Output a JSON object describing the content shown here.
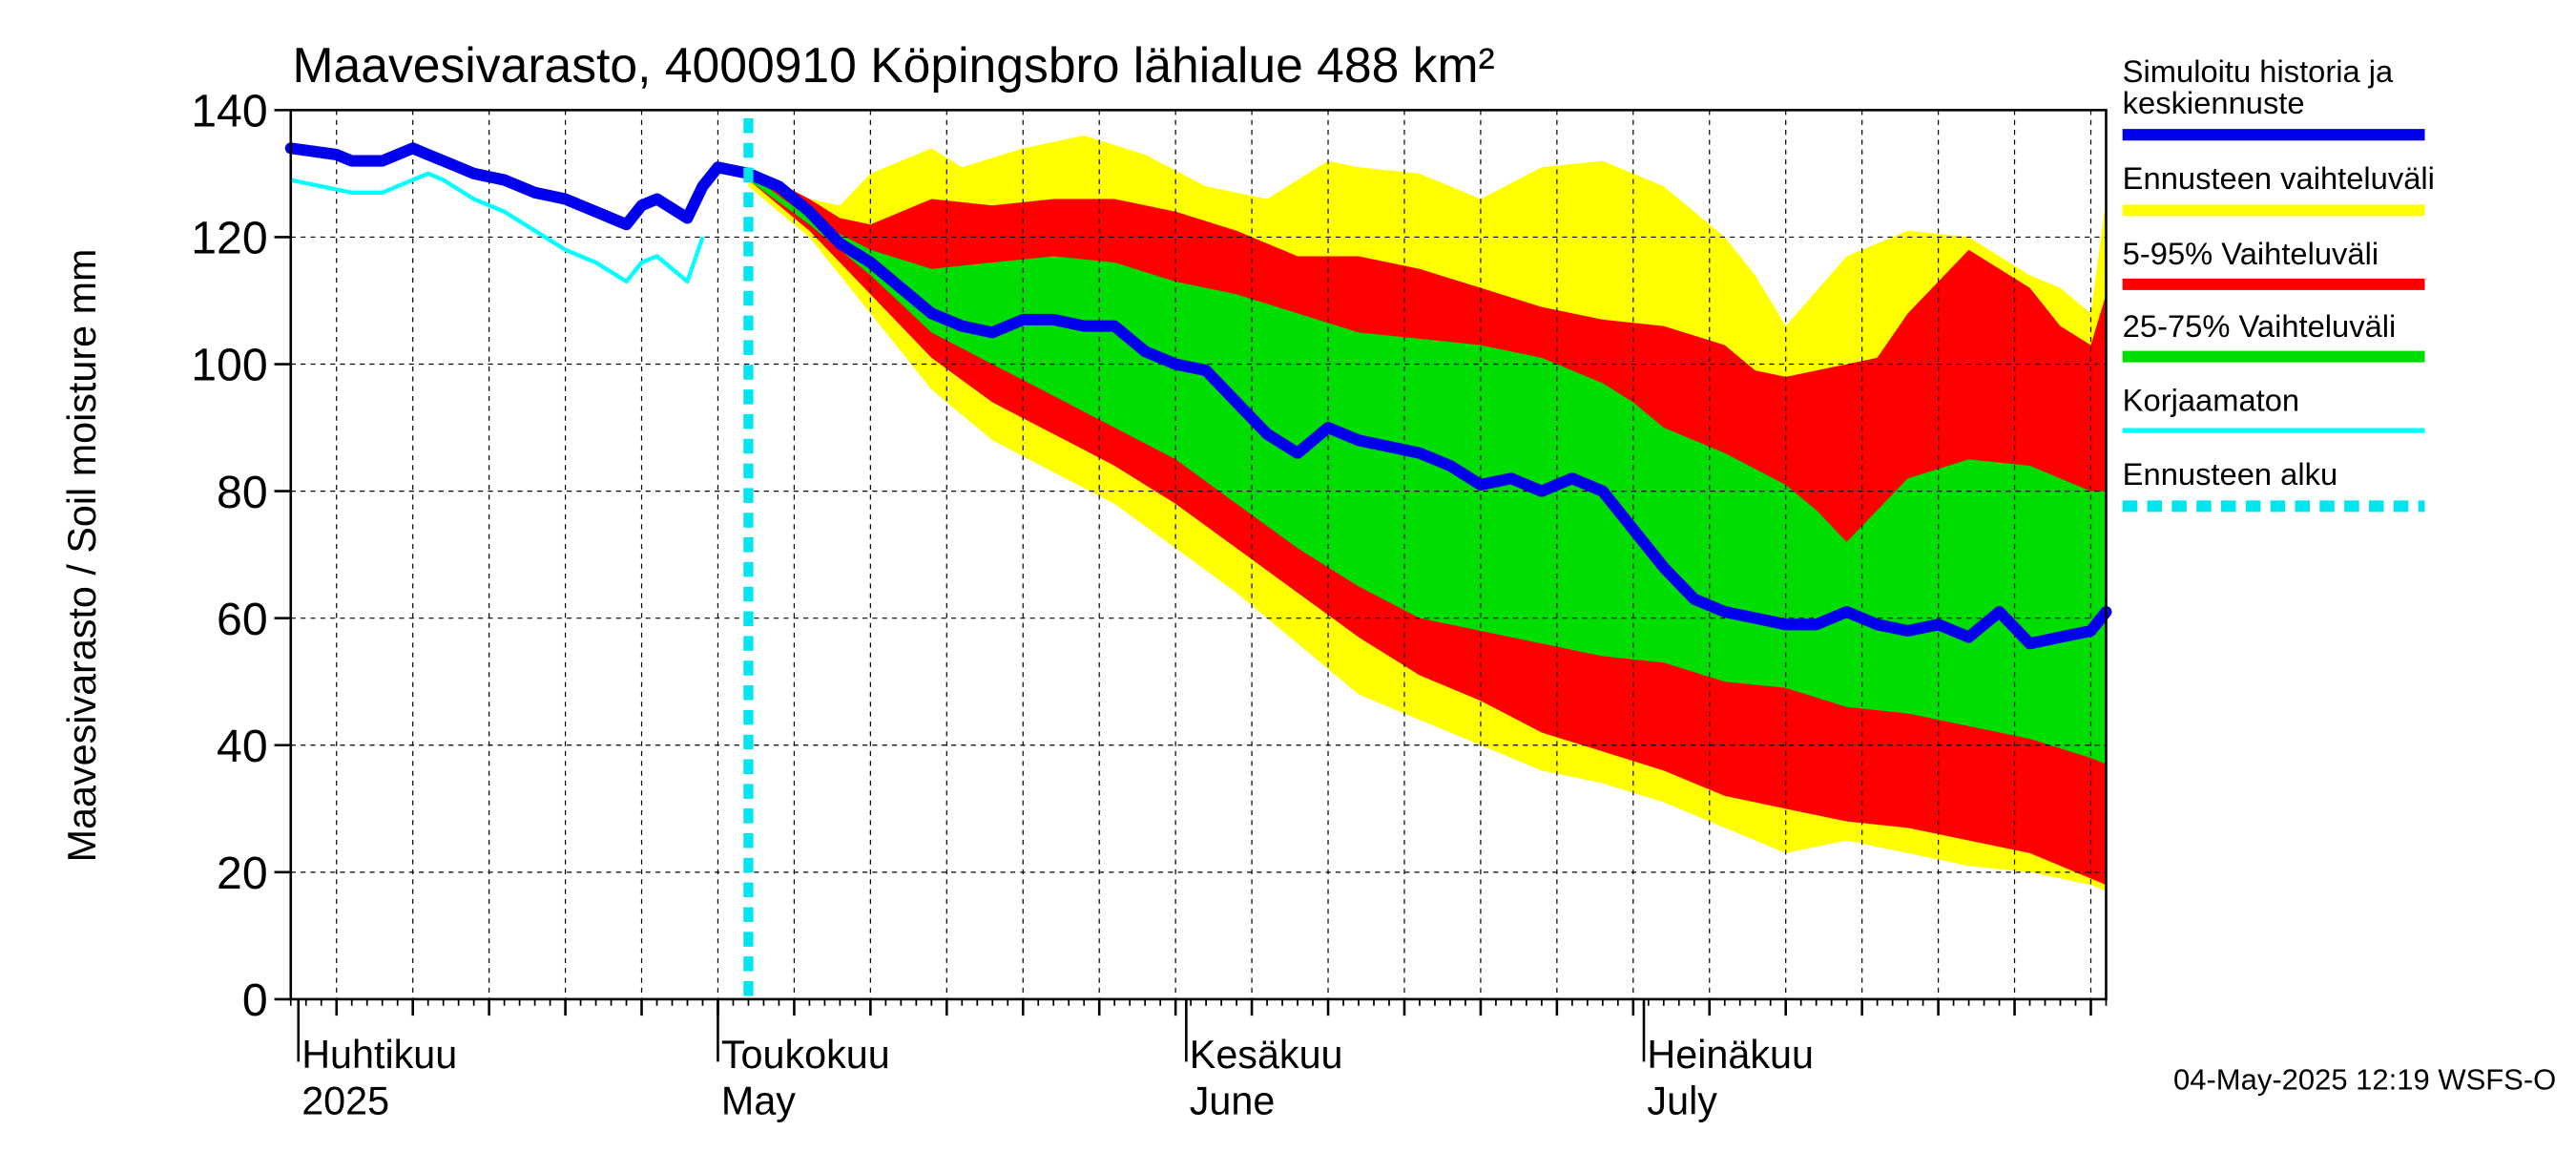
{
  "chart_data": {
    "type": "area",
    "title": "Maavesivarasto, 4000910 Köpingsbro lähialue 488 km²",
    "ylabel": "Maavesivarasto / Soil moisture   mm",
    "ylim": [
      0,
      140
    ],
    "yticks": [
      "0",
      "20",
      "40",
      "60",
      "80",
      "100",
      "120",
      "140"
    ],
    "x_range_days": [
      0,
      119
    ],
    "x_start_date": "2025-03-30",
    "forecast_start_day": 30,
    "month_labels": [
      {
        "day": 0.5,
        "line1": "Huhtikuu",
        "line2": "2025"
      },
      {
        "day": 28,
        "line1": "Toukokuu",
        "line2": "May"
      },
      {
        "day": 58.7,
        "line1": "Kesäkuu",
        "line2": "June"
      },
      {
        "day": 88.7,
        "line1": "Heinäkuu",
        "line2": "July"
      }
    ],
    "timestamp": "04-May-2025 12:19 WSFS-O",
    "legend": [
      {
        "label": "Simuloitu historia ja",
        "label2": "keskiennuste",
        "color": "#0000ee",
        "style": "thick"
      },
      {
        "label": "Ennusteen vaihteluväli",
        "color": "#ffff00",
        "style": "thick"
      },
      {
        "label": "5-95% Vaihteluväli",
        "color": "#ff0000",
        "style": "thick"
      },
      {
        "label": "25-75% Vaihteluväli",
        "color": "#00dd00",
        "style": "thick"
      },
      {
        "label": "Korjaamaton",
        "color": "#00ffff",
        "style": "thin"
      },
      {
        "label": "Ennusteen alku",
        "color": "#00e5ee",
        "style": "dashed"
      }
    ],
    "series": [
      {
        "name": "Simuloitu historia (history)",
        "x": [
          0,
          3,
          4,
          6,
          8,
          9,
          10,
          12,
          14,
          16,
          18,
          20,
          22,
          23,
          24,
          26,
          27,
          28,
          30
        ],
        "values": [
          134,
          133,
          132,
          132,
          134,
          133,
          132,
          130,
          129,
          127,
          126,
          124,
          122,
          125,
          126,
          123,
          128,
          131,
          130
        ]
      },
      {
        "name": "Korjaamaton",
        "x": [
          0,
          2,
          4,
          6,
          8,
          9,
          10,
          12,
          14,
          16,
          18,
          20,
          22,
          23,
          24,
          26,
          27
        ],
        "values": [
          129,
          128,
          127,
          127,
          129,
          130,
          129,
          126,
          124,
          121,
          118,
          116,
          113,
          116,
          117,
          113,
          120
        ]
      },
      {
        "name": "Keskiennuste",
        "x": [
          30,
          32,
          34,
          36,
          38,
          40,
          42,
          44,
          46,
          48,
          50,
          52,
          54,
          56,
          58,
          60,
          62,
          64,
          66,
          68,
          70,
          72,
          74,
          76,
          78,
          80,
          82,
          84,
          86,
          88,
          90,
          92,
          94,
          96,
          98,
          100,
          102,
          104,
          106,
          108,
          110,
          112,
          114,
          116,
          118,
          119
        ],
        "values": [
          130,
          128,
          124,
          119,
          116,
          112,
          108,
          106,
          105,
          107,
          107,
          106,
          106,
          102,
          100,
          99,
          94,
          89,
          86,
          90,
          88,
          87,
          86,
          84,
          81,
          82,
          80,
          82,
          80,
          74,
          68,
          63,
          61,
          60,
          59,
          59,
          61,
          59,
          58,
          59,
          57,
          61,
          56,
          57,
          58,
          61
        ]
      },
      {
        "name": "Ennusteen vaihteluväli (upper)",
        "x": [
          30,
          34,
          36,
          38,
          42,
          44,
          48,
          52,
          56,
          60,
          64,
          68,
          70,
          74,
          78,
          82,
          86,
          90,
          94,
          96,
          98,
          102,
          106,
          110,
          114,
          116,
          118,
          119
        ],
        "values": [
          131,
          126,
          125,
          130,
          134,
          131,
          134,
          136,
          133,
          128,
          126,
          132,
          131,
          130,
          126,
          131,
          132,
          128,
          120,
          114,
          106,
          117,
          121,
          120,
          114,
          112,
          108,
          126
        ]
      },
      {
        "name": "Ennusteen vaihteluväli (lower)",
        "x": [
          30,
          34,
          38,
          42,
          46,
          50,
          54,
          58,
          62,
          66,
          70,
          74,
          78,
          82,
          86,
          90,
          94,
          98,
          102,
          106,
          110,
          114,
          118,
          119
        ],
        "values": [
          128,
          120,
          108,
          96,
          88,
          83,
          78,
          71,
          64,
          56,
          48,
          44,
          40,
          36,
          34,
          31,
          27,
          23,
          25,
          23,
          21,
          20,
          18,
          17
        ]
      },
      {
        "name": "5-95% Vaihteluväli (upper)",
        "x": [
          30,
          34,
          36,
          38,
          42,
          46,
          50,
          54,
          58,
          62,
          66,
          70,
          74,
          78,
          82,
          86,
          90,
          94,
          96,
          98,
          102,
          104,
          106,
          110,
          114,
          116,
          118,
          119
        ],
        "values": [
          131,
          126,
          123,
          122,
          126,
          125,
          126,
          126,
          124,
          121,
          117,
          117,
          115,
          112,
          109,
          107,
          106,
          103,
          99,
          98,
          100,
          101,
          108,
          118,
          112,
          106,
          103,
          111
        ]
      },
      {
        "name": "5-95% Vaihteluväli (lower)",
        "x": [
          30,
          34,
          38,
          42,
          46,
          50,
          54,
          58,
          62,
          66,
          70,
          74,
          78,
          82,
          86,
          90,
          94,
          98,
          102,
          106,
          110,
          114,
          118,
          119
        ],
        "values": [
          129,
          121,
          111,
          101,
          94,
          89,
          84,
          78,
          71,
          64,
          57,
          51,
          47,
          42,
          39,
          36,
          32,
          30,
          28,
          27,
          25,
          23,
          19,
          18
        ]
      },
      {
        "name": "25-75% Vaihteluväli (upper)",
        "x": [
          30,
          34,
          38,
          42,
          46,
          50,
          54,
          58,
          62,
          66,
          70,
          74,
          78,
          82,
          86,
          88,
          90,
          94,
          98,
          100,
          102,
          106,
          110,
          114,
          118,
          119
        ],
        "values": [
          130,
          123,
          118,
          115,
          116,
          117,
          116,
          113,
          111,
          108,
          105,
          104,
          103,
          101,
          97,
          94,
          90,
          86,
          81,
          77,
          72,
          82,
          85,
          84,
          80,
          80
        ]
      },
      {
        "name": "25-75% Vaihteluväli (lower)",
        "x": [
          30,
          34,
          38,
          42,
          46,
          50,
          54,
          58,
          62,
          66,
          70,
          74,
          78,
          82,
          86,
          90,
          94,
          98,
          102,
          106,
          110,
          114,
          118,
          119
        ],
        "values": [
          129,
          122,
          114,
          105,
          100,
          95,
          90,
          85,
          78,
          71,
          65,
          60,
          58,
          56,
          54,
          53,
          50,
          49,
          46,
          45,
          43,
          41,
          38,
          37
        ]
      }
    ]
  }
}
